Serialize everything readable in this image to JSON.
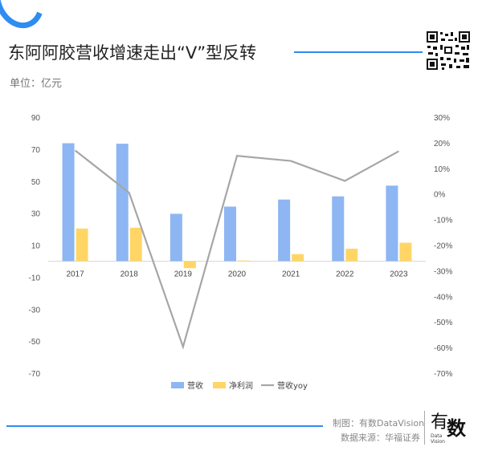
{
  "header": {
    "title": "东阿阿胶营收增速走出“V”型反转",
    "unit": "单位：亿元"
  },
  "footer": {
    "credit_line": "制图：有数DataVision",
    "source_line": "数据来源：华福证券",
    "brand_main": "数",
    "brand_you": "有",
    "brand_sub_1": "Data",
    "brand_sub_2": "Vision"
  },
  "colors": {
    "accent": "#2f8cf0",
    "revenue": "#8db6f3",
    "profit": "#ffd666",
    "yoy": "#a6a6a6"
  },
  "chart_data": {
    "type": "bar",
    "categories": [
      "2017",
      "2018",
      "2019",
      "2020",
      "2021",
      "2022",
      "2023"
    ],
    "series": [
      {
        "name": "营收",
        "type": "bar",
        "axis": "left",
        "values": [
          73.7,
          73.4,
          29.6,
          34.1,
          38.5,
          40.5,
          47.2
        ]
      },
      {
        "name": "净利润",
        "type": "bar",
        "axis": "left",
        "values": [
          20.4,
          20.9,
          -4.4,
          0.4,
          4.4,
          7.8,
          11.5
        ]
      },
      {
        "name": "营收yoy",
        "type": "line",
        "axis": "right",
        "values": [
          0.17,
          0.005,
          -0.597,
          0.149,
          0.129,
          0.051,
          0.167
        ]
      }
    ],
    "left_axis": {
      "ylim": [
        -70,
        90
      ],
      "ticks": [
        "90",
        "70",
        "50",
        "30",
        "10",
        "-10",
        "-30",
        "-50",
        "-70"
      ]
    },
    "right_axis": {
      "ylim": [
        -0.7,
        0.3
      ],
      "ticks": [
        "30%",
        "20%",
        "10%",
        "0%",
        "-10%",
        "-20%",
        "-30%",
        "-40%",
        "-50%",
        "-60%",
        "-70%"
      ]
    },
    "legend": {
      "position": "bottom",
      "labels": [
        "营收",
        "净利润",
        "营收yoy"
      ]
    },
    "grid": true
  }
}
